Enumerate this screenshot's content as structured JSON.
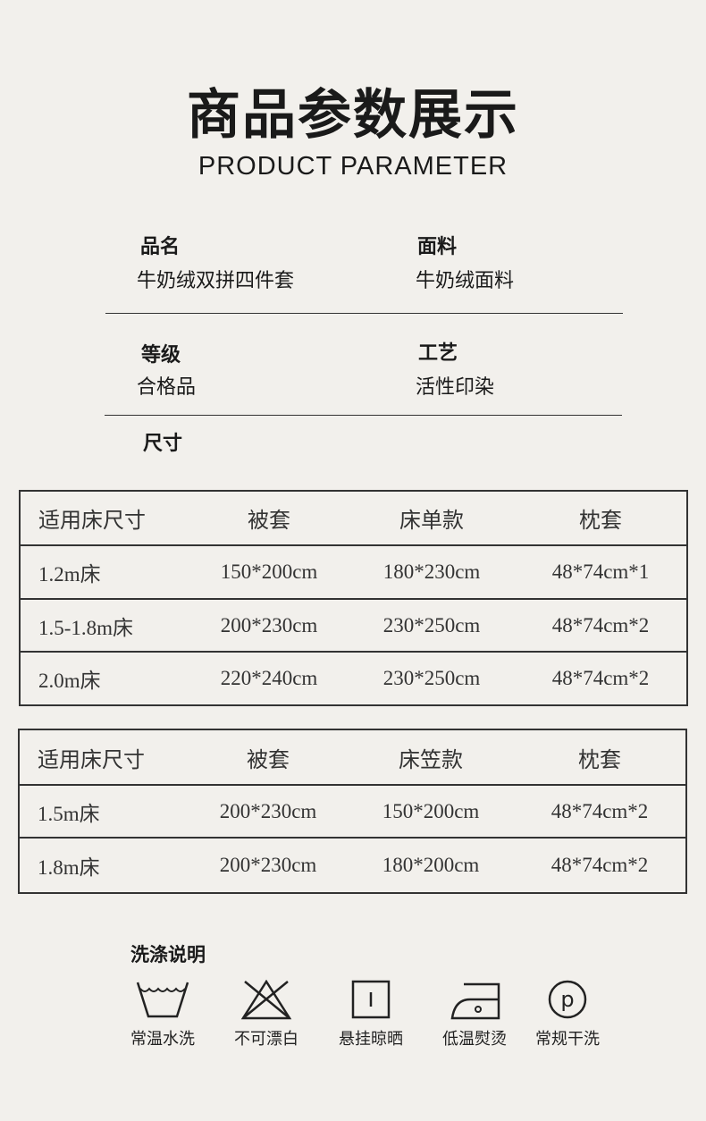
{
  "header": {
    "title": "商品参数展示",
    "subtitle": "PRODUCT PARAMETER"
  },
  "params": [
    {
      "label": "品名",
      "value": "牛奶绒双拼四件套"
    },
    {
      "label": "面料",
      "value": "牛奶绒面料"
    },
    {
      "label": "等级",
      "value": "合格品"
    },
    {
      "label": "工艺",
      "value": "活性印染"
    }
  ],
  "size_label": "尺寸",
  "table1": {
    "headers": [
      "适用床尺寸",
      "被套",
      "床单款",
      "枕套"
    ],
    "rows": [
      [
        "1.2m床",
        "150*200cm",
        "180*230cm",
        "48*74cm*1"
      ],
      [
        "1.5-1.8m床",
        "200*230cm",
        "230*250cm",
        "48*74cm*2"
      ],
      [
        "2.0m床",
        "220*240cm",
        "230*250cm",
        "48*74cm*2"
      ]
    ]
  },
  "table2": {
    "headers": [
      "适用床尺寸",
      "被套",
      "床笠款",
      "枕套"
    ],
    "rows": [
      [
        "1.5m床",
        "200*230cm",
        "150*200cm",
        "48*74cm*2"
      ],
      [
        "1.8m床",
        "200*230cm",
        "180*200cm",
        "48*74cm*2"
      ]
    ]
  },
  "washing": {
    "title": "洗涤说明",
    "items": [
      {
        "icon": "wash-basin-icon",
        "label": "常温水洗"
      },
      {
        "icon": "no-bleach-icon",
        "label": "不可漂白"
      },
      {
        "icon": "hang-dry-icon",
        "label": "悬挂晾晒"
      },
      {
        "icon": "low-iron-icon",
        "label": "低温熨烫"
      },
      {
        "icon": "dry-clean-p-icon",
        "label": "常规干洗"
      }
    ]
  }
}
